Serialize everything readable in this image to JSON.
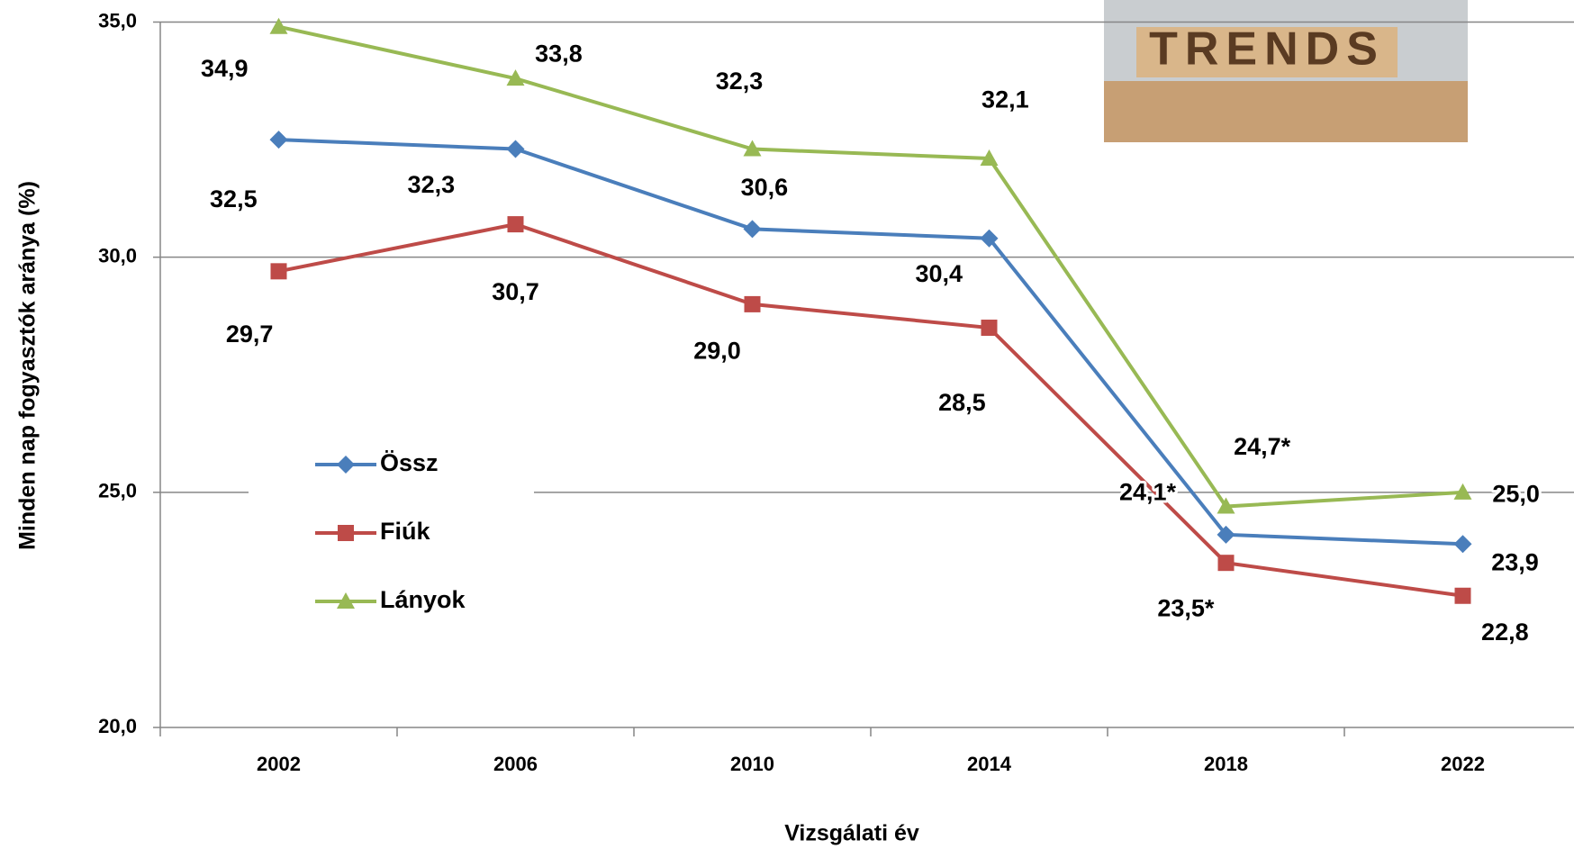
{
  "chart_data": {
    "type": "line",
    "x_label": "Vizsgálati év",
    "y_label": "Minden nap fogyasztók aránya (%)",
    "image_text": "TRENDS",
    "categories": [
      "2002",
      "2006",
      "2010",
      "2014",
      "2018",
      "2022"
    ],
    "series": [
      {
        "name": "Össz",
        "color": "#4a7ebb",
        "marker": "diamond",
        "values": [
          32.5,
          32.3,
          30.6,
          30.4,
          24.1,
          23.9
        ],
        "value_labels": [
          "32,5",
          "32,3",
          "30,6",
          "30,4",
          "24,1*",
          "23,9"
        ]
      },
      {
        "name": "Fiúk",
        "color": "#be4b48",
        "marker": "square",
        "values": [
          29.7,
          30.7,
          29.0,
          28.5,
          23.5,
          22.8
        ],
        "value_labels": [
          "29,7",
          "30,7",
          "29,0",
          "28,5",
          "23,5*",
          "22,8"
        ]
      },
      {
        "name": "Lányok",
        "color": "#98b954",
        "marker": "triangle",
        "values": [
          34.9,
          33.8,
          32.3,
          32.1,
          24.7,
          25.0
        ],
        "value_labels": [
          "34,9",
          "33,8",
          "32,3",
          "32,1",
          "24,7*",
          "25,0"
        ]
      }
    ],
    "ylim": [
      20,
      35
    ],
    "yticks": [
      {
        "value": 20,
        "label": "20,0"
      },
      {
        "value": 25,
        "label": "25,0"
      },
      {
        "value": 30,
        "label": "30,0"
      },
      {
        "value": 35,
        "label": "35,0"
      }
    ],
    "grid": true,
    "legend": "left"
  }
}
